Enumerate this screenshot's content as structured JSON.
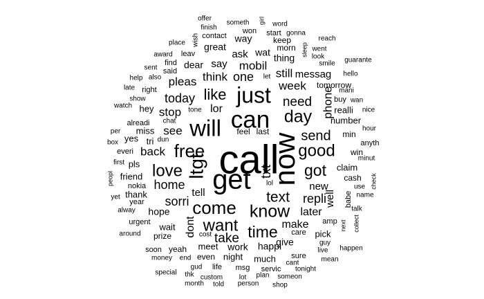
{
  "chart_data": {
    "type": "wordcloud",
    "color": "#000000",
    "background": "#ffffff",
    "words": [
      {
        "text": "call",
        "weight": 58
      },
      {
        "text": "now",
        "weight": 42
      },
      {
        "text": "get",
        "weight": 40
      },
      {
        "text": "can",
        "weight": 35
      },
      {
        "text": "will",
        "weight": 33
      },
      {
        "text": "just",
        "weight": 32
      },
      {
        "text": "ltgt",
        "weight": 28
      },
      {
        "text": "free",
        "weight": 26
      },
      {
        "text": "come",
        "weight": 26
      },
      {
        "text": "know",
        "weight": 25
      },
      {
        "text": "day",
        "weight": 25
      },
      {
        "text": "good",
        "weight": 24
      },
      {
        "text": "love",
        "weight": 24
      },
      {
        "text": "want",
        "weight": 24
      },
      {
        "text": "time",
        "weight": 23
      },
      {
        "text": "got",
        "weight": 23
      },
      {
        "text": "like",
        "weight": 22
      },
      {
        "text": "text",
        "weight": 21
      },
      {
        "text": "send",
        "weight": 20
      },
      {
        "text": "txt",
        "weight": 19
      },
      {
        "text": "need",
        "weight": 19
      },
      {
        "text": "take",
        "weight": 19
      },
      {
        "text": "home",
        "weight": 18
      },
      {
        "text": "sorri",
        "weight": 18
      },
      {
        "text": "repli",
        "weight": 18
      },
      {
        "text": "today",
        "weight": 18
      },
      {
        "text": "one",
        "weight": 18
      },
      {
        "text": "phone",
        "weight": 17
      },
      {
        "text": "back",
        "weight": 17
      },
      {
        "text": "stop",
        "weight": 17
      },
      {
        "text": "see",
        "weight": 17
      },
      {
        "text": "think",
        "weight": 17
      },
      {
        "text": "mobil",
        "weight": 17
      },
      {
        "text": "week",
        "weight": 17
      },
      {
        "text": "pleas",
        "weight": 17
      },
      {
        "text": "still",
        "weight": 17
      },
      {
        "text": "later",
        "weight": 16
      },
      {
        "text": "make",
        "weight": 16
      },
      {
        "text": "dont",
        "weight": 16
      },
      {
        "text": "lor",
        "weight": 16
      },
      {
        "text": "new",
        "weight": 15
      },
      {
        "text": "messag",
        "weight": 15
      },
      {
        "text": "tell",
        "weight": 15
      },
      {
        "text": "say",
        "weight": 15
      },
      {
        "text": "ask",
        "weight": 15
      },
      {
        "text": "well",
        "weight": 15
      },
      {
        "text": "great",
        "weight": 14
      },
      {
        "text": "hope",
        "weight": 14
      },
      {
        "text": "work",
        "weight": 14
      },
      {
        "text": "happi",
        "weight": 14
      },
      {
        "text": "give",
        "weight": 14
      },
      {
        "text": "way",
        "weight": 14
      },
      {
        "text": "wat",
        "weight": 14
      },
      {
        "text": "dear",
        "weight": 14
      },
      {
        "text": "thing",
        "weight": 14
      },
      {
        "text": "miss",
        "weight": 13
      },
      {
        "text": "night",
        "weight": 13
      },
      {
        "text": "much",
        "weight": 13
      },
      {
        "text": "meet",
        "weight": 13
      },
      {
        "text": "wait",
        "weight": 13
      },
      {
        "text": "hey",
        "weight": 13
      },
      {
        "text": "tri",
        "weight": 13
      },
      {
        "text": "pls",
        "weight": 13
      },
      {
        "text": "friend",
        "weight": 13
      },
      {
        "text": "thank",
        "weight": 13
      },
      {
        "text": "claim",
        "weight": 13
      },
      {
        "text": "number",
        "weight": 13
      },
      {
        "text": "pick",
        "weight": 13
      },
      {
        "text": "realli",
        "weight": 13
      },
      {
        "text": "yes",
        "weight": 13
      },
      {
        "text": "prize",
        "weight": 12
      },
      {
        "text": "feel",
        "weight": 12
      },
      {
        "text": "last",
        "weight": 12
      },
      {
        "text": "even",
        "weight": 12
      },
      {
        "text": "tomorrow",
        "weight": 12
      },
      {
        "text": "keep",
        "weight": 12
      },
      {
        "text": "morn",
        "weight": 12
      },
      {
        "text": "win",
        "weight": 12
      },
      {
        "text": "min",
        "weight": 12
      },
      {
        "text": "cash",
        "weight": 12
      },
      {
        "text": "yeah",
        "weight": 12
      },
      {
        "text": "soon",
        "weight": 11
      },
      {
        "text": "sure",
        "weight": 11
      },
      {
        "text": "care",
        "weight": 11
      },
      {
        "text": "said",
        "weight": 11
      },
      {
        "text": "leav",
        "weight": 11
      },
      {
        "text": "find",
        "weight": 11
      },
      {
        "text": "right",
        "weight": 11
      },
      {
        "text": "alreadi",
        "weight": 11
      },
      {
        "text": "everi",
        "weight": 11
      },
      {
        "text": "year",
        "weight": 11
      },
      {
        "text": "nokia",
        "weight": 11
      },
      {
        "text": "babe",
        "weight": 11
      },
      {
        "text": "anyth",
        "weight": 11
      },
      {
        "text": "buy",
        "weight": 11
      },
      {
        "text": "amp",
        "weight": 11
      },
      {
        "text": "urgent",
        "weight": 11
      },
      {
        "text": "life",
        "weight": 11
      },
      {
        "text": "msg",
        "weight": 11
      },
      {
        "text": "servic",
        "weight": 11
      },
      {
        "text": "contact",
        "weight": 11
      },
      {
        "text": "won",
        "weight": 11
      },
      {
        "text": "start",
        "weight": 11
      },
      {
        "text": "gonna",
        "weight": 10
      },
      {
        "text": "someth",
        "weight": 10
      },
      {
        "text": "finish",
        "weight": 10
      },
      {
        "text": "offer",
        "weight": 10
      },
      {
        "text": "wish",
        "weight": 10
      },
      {
        "text": "girl",
        "weight": 9
      },
      {
        "text": "word",
        "weight": 10
      },
      {
        "text": "place",
        "weight": 10
      },
      {
        "text": "award",
        "weight": 10
      },
      {
        "text": "sent",
        "weight": 10
      },
      {
        "text": "help",
        "weight": 10
      },
      {
        "text": "also",
        "weight": 10
      },
      {
        "text": "late",
        "weight": 10
      },
      {
        "text": "show",
        "weight": 10
      },
      {
        "text": "watch",
        "weight": 10
      },
      {
        "text": "tone",
        "weight": 10
      },
      {
        "text": "chat",
        "weight": 10
      },
      {
        "text": "dun",
        "weight": 10
      },
      {
        "text": "per",
        "weight": 10
      },
      {
        "text": "box",
        "weight": 10
      },
      {
        "text": "first",
        "weight": 10
      },
      {
        "text": "peopl",
        "weight": 9
      },
      {
        "text": "yet",
        "weight": 10
      },
      {
        "text": "alway",
        "weight": 10
      },
      {
        "text": "around",
        "weight": 10
      },
      {
        "text": "cost",
        "weight": 10
      },
      {
        "text": "money",
        "weight": 10
      },
      {
        "text": "end",
        "weight": 10
      },
      {
        "text": "gud",
        "weight": 10
      },
      {
        "text": "special",
        "weight": 10
      },
      {
        "text": "thk",
        "weight": 10
      },
      {
        "text": "custom",
        "weight": 10
      },
      {
        "text": "month",
        "weight": 10
      },
      {
        "text": "told",
        "weight": 10
      },
      {
        "text": "lot",
        "weight": 10
      },
      {
        "text": "person",
        "weight": 10
      },
      {
        "text": "plan",
        "weight": 10
      },
      {
        "text": "someon",
        "weight": 10
      },
      {
        "text": "shop",
        "weight": 10
      },
      {
        "text": "tonight",
        "weight": 10
      },
      {
        "text": "cant",
        "weight": 10
      },
      {
        "text": "mean",
        "weight": 10
      },
      {
        "text": "live",
        "weight": 10
      },
      {
        "text": "guy",
        "weight": 10
      },
      {
        "text": "happen",
        "weight": 10
      },
      {
        "text": "next",
        "weight": 9
      },
      {
        "text": "collect",
        "weight": 9
      },
      {
        "text": "talk",
        "weight": 10
      },
      {
        "text": "name",
        "weight": 10
      },
      {
        "text": "use",
        "weight": 10
      },
      {
        "text": "check",
        "weight": 9
      },
      {
        "text": "minut",
        "weight": 10
      },
      {
        "text": "hour",
        "weight": 10
      },
      {
        "text": "nice",
        "weight": 10
      },
      {
        "text": "wan",
        "weight": 10
      },
      {
        "text": "mani",
        "weight": 10
      },
      {
        "text": "hello",
        "weight": 10
      },
      {
        "text": "guarante",
        "weight": 10
      },
      {
        "text": "smile",
        "weight": 10
      },
      {
        "text": "look",
        "weight": 10
      },
      {
        "text": "went",
        "weight": 10
      },
      {
        "text": "sleep",
        "weight": 9
      },
      {
        "text": "reach",
        "weight": 10
      },
      {
        "text": "lol",
        "weight": 10
      },
      {
        "text": "let",
        "weight": 10
      }
    ]
  }
}
